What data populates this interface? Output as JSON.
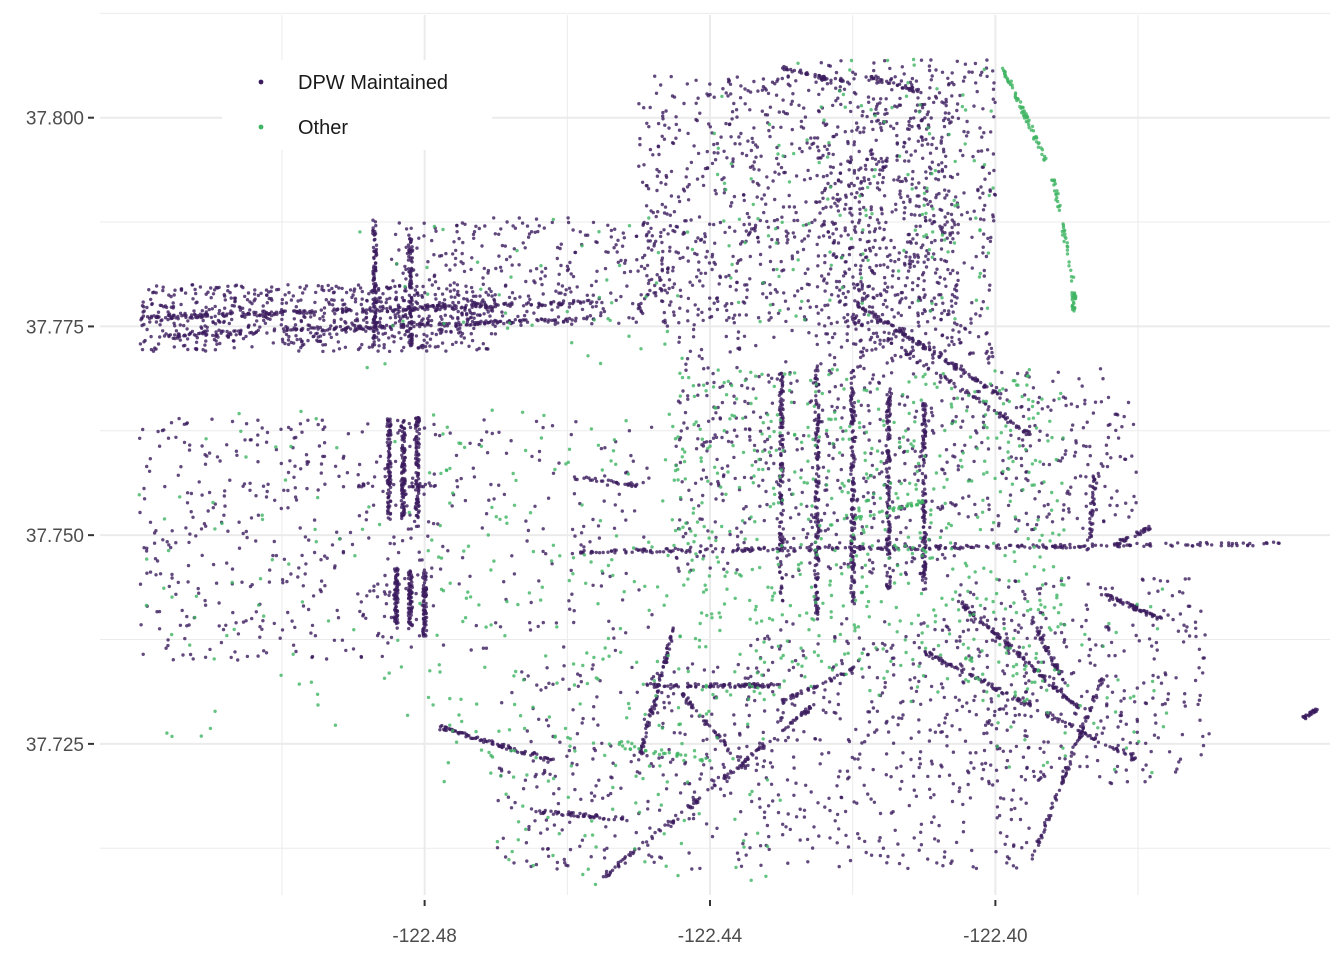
{
  "chart_data": {
    "type": "scatter",
    "title": "",
    "xlabel": "",
    "ylabel": "",
    "xlim": [
      -122.5255,
      -122.3531
    ],
    "ylim": [
      37.7069,
      37.8123
    ],
    "x_ticks": [
      -122.48,
      -122.44,
      -122.4
    ],
    "x_tick_labels": [
      "-122.48",
      "-122.44",
      "-122.40"
    ],
    "y_ticks": [
      37.725,
      37.75,
      37.775,
      37.8
    ],
    "y_tick_labels": [
      "37.725",
      "37.750",
      "37.775",
      "37.800"
    ],
    "grid": true,
    "legend": {
      "position": "top-left"
    },
    "series": [
      {
        "name": "DPW Maintained",
        "color": "#3b1c5e",
        "clusters": [
          {
            "type": "area",
            "x": [
              -122.52,
              -122.47
            ],
            "y": [
              37.772,
              37.78
            ],
            "n": 650
          },
          {
            "type": "area",
            "x": [
              -122.485,
              -122.445
            ],
            "y": [
              37.775,
              37.788
            ],
            "n": 320
          },
          {
            "type": "area",
            "x": [
              -122.52,
              -122.48
            ],
            "y": [
              37.735,
              37.764
            ],
            "n": 380
          },
          {
            "type": "area",
            "x": [
              -122.485,
              -122.448
            ],
            "y": [
              37.736,
              37.764
            ],
            "n": 150
          },
          {
            "type": "area",
            "x": [
              -122.45,
              -122.405
            ],
            "y": [
              37.775,
              37.805
            ],
            "n": 900
          },
          {
            "type": "area",
            "x": [
              -122.425,
              -122.4
            ],
            "y": [
              37.77,
              37.807
            ],
            "n": 500
          },
          {
            "type": "area",
            "x": [
              -122.445,
              -122.405
            ],
            "y": [
              37.745,
              37.775
            ],
            "n": 500
          },
          {
            "type": "area",
            "x": [
              -122.405,
              -122.38
            ],
            "y": [
              37.75,
              37.77
            ],
            "n": 200
          },
          {
            "type": "area",
            "x": [
              -122.435,
              -122.395
            ],
            "y": [
              37.71,
              37.74
            ],
            "n": 450
          },
          {
            "type": "area",
            "x": [
              -122.47,
              -122.435
            ],
            "y": [
              37.71,
              37.735
            ],
            "n": 250
          },
          {
            "type": "area",
            "x": [
              -122.405,
              -122.37
            ],
            "y": [
              37.72,
              37.745
            ],
            "n": 300
          },
          {
            "type": "line",
            "x": [
              -122.52,
              -122.455
            ],
            "y": [
              37.776,
              37.778
            ],
            "n": 220
          },
          {
            "type": "line",
            "x": [
              -122.515,
              -122.455
            ],
            "y": [
              37.774,
              37.776
            ],
            "n": 180
          },
          {
            "type": "line",
            "x": [
              -122.487,
              -122.487
            ],
            "y": [
              37.773,
              37.788
            ],
            "n": 100
          },
          {
            "type": "line",
            "x": [
              -122.482,
              -122.482
            ],
            "y": [
              37.773,
              37.786
            ],
            "n": 80
          },
          {
            "type": "line",
            "x": [
              -122.485,
              -122.485
            ],
            "y": [
              37.752,
              37.764
            ],
            "n": 90
          },
          {
            "type": "line",
            "x": [
              -122.483,
              -122.483
            ],
            "y": [
              37.752,
              37.764
            ],
            "n": 90
          },
          {
            "type": "line",
            "x": [
              -122.481,
              -122.481
            ],
            "y": [
              37.752,
              37.764
            ],
            "n": 90
          },
          {
            "type": "line",
            "x": [
              -122.484,
              -122.484
            ],
            "y": [
              37.739,
              37.746
            ],
            "n": 70
          },
          {
            "type": "line",
            "x": [
              -122.482,
              -122.482
            ],
            "y": [
              37.739,
              37.746
            ],
            "n": 70
          },
          {
            "type": "line",
            "x": [
              -122.48,
              -122.48
            ],
            "y": [
              37.738,
              37.746
            ],
            "n": 70
          },
          {
            "type": "line",
            "x": [
              -122.46,
              -122.36
            ],
            "y": [
              37.748,
              37.749
            ],
            "n": 260
          },
          {
            "type": "line",
            "x": [
              -122.425,
              -122.425
            ],
            "y": [
              37.74,
              37.77
            ],
            "n": 140
          },
          {
            "type": "line",
            "x": [
              -122.42,
              -122.42
            ],
            "y": [
              37.742,
              37.77
            ],
            "n": 140
          },
          {
            "type": "line",
            "x": [
              -122.415,
              -122.415
            ],
            "y": [
              37.743,
              37.768
            ],
            "n": 130
          },
          {
            "type": "line",
            "x": [
              -122.41,
              -122.41
            ],
            "y": [
              37.743,
              37.766
            ],
            "n": 120
          },
          {
            "type": "line",
            "x": [
              -122.43,
              -122.43
            ],
            "y": [
              37.742,
              37.77
            ],
            "n": 120
          },
          {
            "type": "line",
            "x": [
              -122.42,
              -122.398
            ],
            "y": [
              37.778,
              37.766
            ],
            "n": 120
          },
          {
            "type": "line",
            "x": [
              -122.42,
              -122.395
            ],
            "y": [
              37.776,
              37.762
            ],
            "n": 80
          },
          {
            "type": "line",
            "x": [
              -122.405,
              -122.388
            ],
            "y": [
              37.742,
              37.729
            ],
            "n": 120
          },
          {
            "type": "line",
            "x": [
              -122.385,
              -122.377
            ],
            "y": [
              37.743,
              37.74
            ],
            "n": 60
          },
          {
            "type": "line",
            "x": [
              -122.395,
              -122.39
            ],
            "y": [
              37.74,
              37.732
            ],
            "n": 50
          },
          {
            "type": "line",
            "x": [
              -122.45,
              -122.445
            ],
            "y": [
              37.723,
              37.739
            ],
            "n": 80
          },
          {
            "type": "line",
            "x": [
              -122.478,
              -122.462
            ],
            "y": [
              37.727,
              37.723
            ],
            "n": 90
          },
          {
            "type": "line",
            "x": [
              -122.45,
              -122.43
            ],
            "y": [
              37.732,
              37.732
            ],
            "n": 80
          },
          {
            "type": "line",
            "x": [
              -122.455,
              -122.425
            ],
            "y": [
              37.709,
              37.73
            ],
            "n": 120
          },
          {
            "type": "line",
            "x": [
              -122.42,
              -122.43
            ],
            "y": [
              37.734,
              37.73
            ],
            "n": 40
          },
          {
            "type": "line",
            "x": [
              -122.41,
              -122.38
            ],
            "y": [
              37.736,
              37.723
            ],
            "n": 120
          },
          {
            "type": "line",
            "x": [
              -122.395,
              -122.385
            ],
            "y": [
              37.711,
              37.733
            ],
            "n": 90
          },
          {
            "type": "line",
            "x": [
              -122.387,
              -122.386
            ],
            "y": [
              37.748,
              37.757
            ],
            "n": 40
          },
          {
            "type": "line",
            "x": [
              -122.383,
              -122.378
            ],
            "y": [
              37.749,
              37.751
            ],
            "n": 30
          },
          {
            "type": "line",
            "x": [
              -122.465,
              -122.452
            ],
            "y": [
              37.717,
              37.716
            ],
            "n": 50
          },
          {
            "type": "line",
            "x": [
              -122.445,
              -122.435
            ],
            "y": [
              37.732,
              37.722
            ],
            "n": 50
          },
          {
            "type": "line",
            "x": [
              -122.43,
              -122.42
            ],
            "y": [
              37.806,
              37.804
            ],
            "n": 40
          },
          {
            "type": "line",
            "x": [
              -122.418,
              -122.41
            ],
            "y": [
              37.805,
              37.803
            ],
            "n": 30
          },
          {
            "type": "line",
            "x": [
              -122.357,
              -122.355
            ],
            "y": [
              37.728,
              37.729
            ],
            "n": 25
          },
          {
            "type": "line",
            "x": [
              -122.49,
              -122.475
            ],
            "y": [
              37.756,
              37.756
            ],
            "n": 30
          },
          {
            "type": "line",
            "x": [
              -122.46,
              -122.45
            ],
            "y": [
              37.757,
              37.756
            ],
            "n": 30
          }
        ]
      },
      {
        "name": "Other",
        "color": "#3fb463",
        "clusters": [
          {
            "type": "area",
            "x": [
              -122.445,
              -122.39
            ],
            "y": [
              37.73,
              37.77
            ],
            "n": 650
          },
          {
            "type": "area",
            "x": [
              -122.48,
              -122.44
            ],
            "y": [
              37.72,
              37.765
            ],
            "n": 180
          },
          {
            "type": "area",
            "x": [
              -122.52,
              -122.47
            ],
            "y": [
              37.725,
              37.765
            ],
            "n": 80
          },
          {
            "type": "area",
            "x": [
              -122.44,
              -122.4
            ],
            "y": [
              37.775,
              37.807
            ],
            "n": 140
          },
          {
            "type": "area",
            "x": [
              -122.49,
              -122.44
            ],
            "y": [
              37.77,
              37.788
            ],
            "n": 50
          },
          {
            "type": "area",
            "x": [
              -122.47,
              -122.43
            ],
            "y": [
              37.708,
              37.73
            ],
            "n": 70
          },
          {
            "type": "area",
            "x": [
              -122.4,
              -122.375
            ],
            "y": [
              37.72,
              37.745
            ],
            "n": 50
          },
          {
            "type": "line",
            "x": [
              -122.399,
              -122.393
            ],
            "y": [
              37.806,
              37.795
            ],
            "n": 70
          },
          {
            "type": "line",
            "x": [
              -122.392,
              -122.389
            ],
            "y": [
              37.793,
              37.78
            ],
            "n": 40
          },
          {
            "type": "line",
            "x": [
              -122.389,
              -122.389
            ],
            "y": [
              37.779,
              37.777
            ],
            "n": 25
          },
          {
            "type": "line",
            "x": [
              -122.462,
              -122.44
            ],
            "y": [
              37.726,
              37.723
            ],
            "n": 30
          },
          {
            "type": "line",
            "x": [
              -122.42,
              -122.41
            ],
            "y": [
              37.752,
              37.754
            ],
            "n": 30
          }
        ]
      }
    ]
  }
}
